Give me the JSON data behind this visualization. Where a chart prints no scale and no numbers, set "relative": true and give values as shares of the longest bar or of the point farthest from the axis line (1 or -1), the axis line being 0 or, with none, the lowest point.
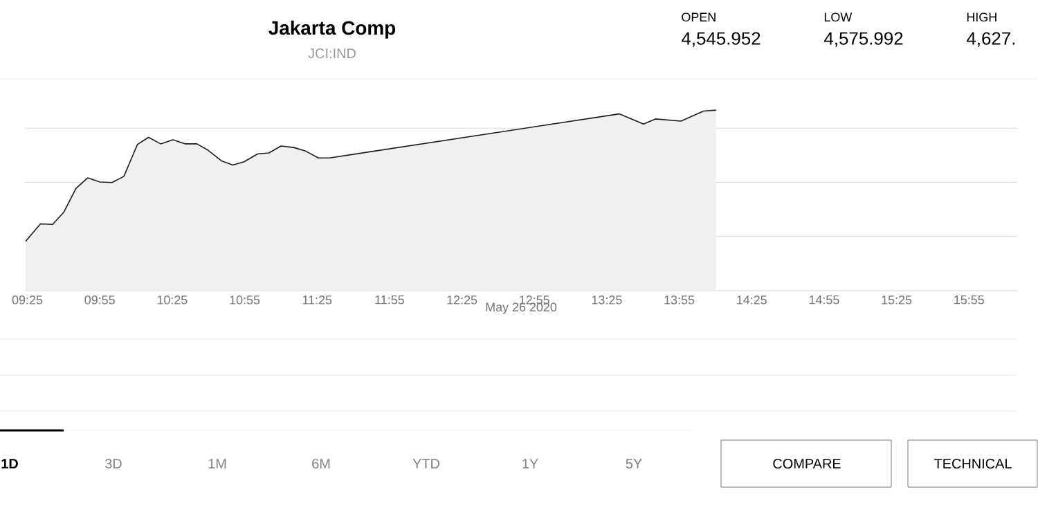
{
  "chart_data": {
    "type": "area",
    "title": "Jakarta Comp",
    "subtitle": "JCI:IND",
    "xlabel": "May 26 2020",
    "relative": true,
    "color": "#1a1a1a",
    "grid": "y",
    "annotations": [
      "OPEN",
      "4,545.952",
      "LOW",
      "4,575.992",
      "HIGH",
      "4,627.",
      "1D",
      "3D",
      "1M",
      "6M",
      "YTD",
      "1Y",
      "5Y",
      "COMPARE",
      "TECHNICAL"
    ],
    "xlim": [
      9.4,
      16.25
    ],
    "xticks": [
      {
        "value": 9.4167,
        "label": "09:25"
      },
      {
        "value": 9.9167,
        "label": "09:55"
      },
      {
        "value": 10.4167,
        "label": "10:25"
      },
      {
        "value": 10.9167,
        "label": "10:55"
      },
      {
        "value": 11.4167,
        "label": "11:25"
      },
      {
        "value": 11.9167,
        "label": "11:55"
      },
      {
        "value": 12.4167,
        "label": "12:25"
      },
      {
        "value": 12.9167,
        "label": "12:55"
      },
      {
        "value": 13.4167,
        "label": "13:25"
      },
      {
        "value": 13.9167,
        "label": "13:55"
      },
      {
        "value": 14.4167,
        "label": "14:25"
      },
      {
        "value": 14.9167,
        "label": "14:55"
      },
      {
        "value": 15.4167,
        "label": "15:25"
      },
      {
        "value": 15.9167,
        "label": "15:55"
      }
    ],
    "x": [
      9.405,
      9.507,
      9.591,
      9.668,
      9.752,
      9.834,
      9.918,
      10.001,
      10.083,
      10.176,
      10.253,
      10.337,
      10.421,
      10.508,
      10.587,
      10.664,
      10.757,
      10.835,
      10.913,
      11.006,
      11.084,
      11.168,
      11.254,
      11.338,
      11.426,
      11.503,
      13.502,
      13.67,
      13.752,
      13.929,
      14.084,
      14.171
    ],
    "values": [
      0.273,
      0.37,
      0.367,
      0.434,
      0.566,
      0.625,
      0.602,
      0.599,
      0.633,
      0.809,
      0.849,
      0.813,
      0.836,
      0.813,
      0.813,
      0.778,
      0.719,
      0.696,
      0.714,
      0.757,
      0.763,
      0.801,
      0.793,
      0.773,
      0.735,
      0.735,
      0.979,
      0.923,
      0.951,
      0.939,
      0.995,
      1
    ]
  }
}
